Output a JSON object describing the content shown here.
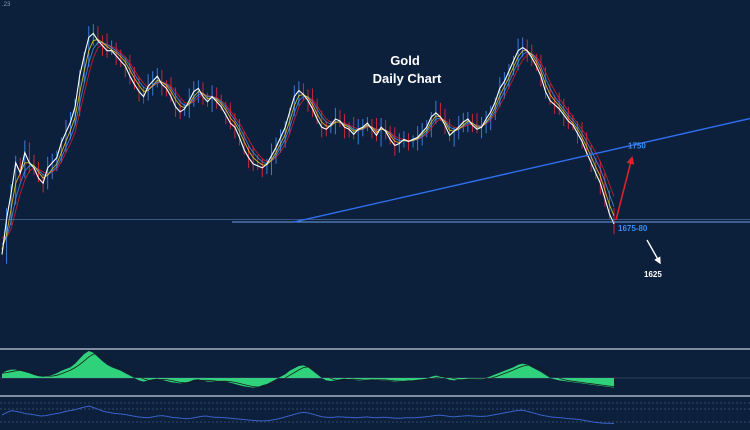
{
  "corner_label": ".23",
  "chart_data": {
    "type": "line",
    "title": "Gold",
    "subtitle": "Daily Chart",
    "xlabel": "",
    "ylabel": "",
    "grid": false,
    "annotations": [
      {
        "text": "1750",
        "value": 1750,
        "direction": "up",
        "color": "#e0202a"
      },
      {
        "text": "1675-80",
        "value": 1677,
        "direction": "level",
        "color": "#3a8ef0"
      },
      {
        "text": "1625",
        "value": 1625,
        "direction": "down",
        "color": "#ffffff"
      }
    ],
    "support_level": {
      "value": 1677
    },
    "trendline": {
      "from": {
        "bar": 64,
        "value": 1677
      },
      "to": {
        "bar": 180,
        "value": 1795
      }
    },
    "series": [
      {
        "color": "#ffffff",
        "values": [
          1645,
          1680,
          1705,
          1735,
          1725,
          1745,
          1735,
          1730,
          1720,
          1715,
          1730,
          1735,
          1740,
          1755,
          1765,
          1775,
          1790,
          1820,
          1840,
          1858,
          1862,
          1855,
          1850,
          1845,
          1845,
          1840,
          1835,
          1830,
          1820,
          1812,
          1805,
          1800,
          1810,
          1815,
          1820,
          1812,
          1808,
          1800,
          1790,
          1785,
          1788,
          1796,
          1805,
          1808,
          1800,
          1795,
          1800,
          1795,
          1790,
          1782,
          1774,
          1770,
          1760,
          1748,
          1740,
          1734,
          1732,
          1730,
          1734,
          1742,
          1750,
          1760,
          1770,
          1785,
          1800,
          1806,
          1802,
          1796,
          1788,
          1778,
          1770,
          1768,
          1772,
          1778,
          1776,
          1770,
          1768,
          1763,
          1768,
          1770,
          1774,
          1768,
          1762,
          1770,
          1766,
          1758,
          1752,
          1754,
          1758,
          1756,
          1758,
          1760,
          1765,
          1770,
          1780,
          1784,
          1780,
          1772,
          1762,
          1766,
          1770,
          1775,
          1778,
          1772,
          1768,
          1770,
          1778,
          1785,
          1795,
          1808,
          1815,
          1825,
          1835,
          1845,
          1848,
          1845,
          1838,
          1830,
          1820,
          1805,
          1796,
          1792,
          1788,
          1782,
          1776,
          1772,
          1764,
          1756,
          1745,
          1735,
          1725,
          1715,
          1700,
          1685,
          1675
        ]
      },
      {
        "color": "#f2d020",
        "values": [
          1650,
          1665,
          1690,
          1715,
          1725,
          1735,
          1735,
          1732,
          1726,
          1720,
          1723,
          1729,
          1734,
          1745,
          1756,
          1767,
          1780,
          1803,
          1825,
          1845,
          1855,
          1856,
          1853,
          1849,
          1846,
          1843,
          1839,
          1834,
          1826,
          1818,
          1811,
          1805,
          1806,
          1811,
          1816,
          1814,
          1811,
          1805,
          1797,
          1791,
          1789,
          1793,
          1800,
          1805,
          1803,
          1798,
          1799,
          1797,
          1793,
          1787,
          1779,
          1774,
          1766,
          1756,
          1747,
          1740,
          1736,
          1733,
          1733,
          1738,
          1745,
          1754,
          1763,
          1776,
          1791,
          1801,
          1802,
          1799,
          1792,
          1783,
          1775,
          1771,
          1771,
          1775,
          1775,
          1772,
          1770,
          1766,
          1767,
          1769,
          1772,
          1770,
          1765,
          1768,
          1767,
          1762,
          1756,
          1755,
          1757,
          1756,
          1757,
          1759,
          1763,
          1767,
          1775,
          1781,
          1780,
          1775,
          1767,
          1766,
          1768,
          1772,
          1776,
          1774,
          1770,
          1770,
          1775,
          1781,
          1790,
          1801,
          1810,
          1819,
          1829,
          1839,
          1845,
          1845,
          1841,
          1834,
          1825,
          1812,
          1802,
          1796,
          1791,
          1785,
          1779,
          1774,
          1768,
          1760,
          1751,
          1741,
          1731,
          1722,
          1708,
          1694,
          1683
        ]
      },
      {
        "color": "#4f8fe8",
        "values": [
          1655,
          1662,
          1678,
          1700,
          1715,
          1727,
          1732,
          1732,
          1728,
          1723,
          1723,
          1727,
          1731,
          1740,
          1750,
          1760,
          1772,
          1793,
          1813,
          1833,
          1847,
          1853,
          1853,
          1851,
          1848,
          1845,
          1841,
          1837,
          1830,
          1822,
          1815,
          1809,
          1807,
          1810,
          1814,
          1814,
          1812,
          1808,
          1801,
          1795,
          1791,
          1792,
          1797,
          1802,
          1803,
          1800,
          1800,
          1798,
          1795,
          1790,
          1783,
          1777,
          1770,
          1761,
          1752,
          1745,
          1740,
          1736,
          1734,
          1737,
          1742,
          1750,
          1758,
          1770,
          1784,
          1796,
          1800,
          1800,
          1795,
          1788,
          1780,
          1775,
          1773,
          1775,
          1775,
          1773,
          1771,
          1768,
          1767,
          1768,
          1771,
          1770,
          1767,
          1768,
          1767,
          1764,
          1759,
          1757,
          1757,
          1756,
          1757,
          1758,
          1761,
          1765,
          1772,
          1778,
          1779,
          1776,
          1770,
          1768,
          1768,
          1771,
          1774,
          1774,
          1771,
          1771,
          1774,
          1779,
          1786,
          1796,
          1805,
          1814,
          1824,
          1834,
          1841,
          1844,
          1842,
          1837,
          1829,
          1818,
          1808,
          1800,
          1794,
          1788,
          1782,
          1777,
          1771,
          1764,
          1756,
          1747,
          1738,
          1729,
          1717,
          1704,
          1692
        ]
      },
      {
        "color": "#e0202a",
        "values": [
          1662,
          1662,
          1670,
          1688,
          1705,
          1718,
          1727,
          1730,
          1729,
          1726,
          1724,
          1726,
          1729,
          1736,
          1745,
          1754,
          1765,
          1784,
          1803,
          1822,
          1838,
          1848,
          1851,
          1851,
          1849,
          1847,
          1843,
          1839,
          1833,
          1826,
          1819,
          1813,
          1809,
          1810,
          1813,
          1814,
          1813,
          1810,
          1805,
          1799,
          1794,
          1793,
          1795,
          1799,
          1802,
          1801,
          1800,
          1799,
          1796,
          1792,
          1786,
          1780,
          1774,
          1766,
          1758,
          1750,
          1744,
          1739,
          1736,
          1737,
          1740,
          1746,
          1753,
          1764,
          1777,
          1790,
          1797,
          1799,
          1797,
          1791,
          1784,
          1778,
          1775,
          1775,
          1775,
          1774,
          1772,
          1770,
          1768,
          1768,
          1770,
          1770,
          1768,
          1768,
          1767,
          1765,
          1761,
          1759,
          1758,
          1757,
          1757,
          1758,
          1760,
          1763,
          1769,
          1775,
          1778,
          1777,
          1773,
          1770,
          1769,
          1770,
          1772,
          1773,
          1772,
          1771,
          1773,
          1777,
          1783,
          1791,
          1800,
          1809,
          1818,
          1828,
          1836,
          1841,
          1842,
          1839,
          1833,
          1824,
          1814,
          1806,
          1798,
          1792,
          1786,
          1780,
          1774,
          1768,
          1761,
          1753,
          1745,
          1736,
          1726,
          1714,
          1702
        ]
      }
    ],
    "macd": {
      "type": "area",
      "fill": "#2fd17a",
      "values": [
        8,
        12,
        14,
        14,
        12,
        10,
        8,
        5,
        3,
        2,
        3,
        5,
        8,
        12,
        15,
        18,
        24,
        32,
        40,
        45,
        42,
        35,
        28,
        22,
        18,
        15,
        12,
        8,
        4,
        0,
        -4,
        -6,
        -4,
        -2,
        -1,
        -3,
        -5,
        -7,
        -8,
        -9,
        -8,
        -6,
        -3,
        -2,
        -4,
        -6,
        -6,
        -5,
        -5,
        -6,
        -8,
        -10,
        -12,
        -14,
        -15,
        -16,
        -15,
        -12,
        -10,
        -6,
        -2,
        2,
        6,
        12,
        16,
        20,
        21,
        18,
        12,
        6,
        0,
        -4,
        -5,
        -4,
        -2,
        -1,
        -2,
        -3,
        -4,
        -4,
        -3,
        -2,
        -3,
        -4,
        -4,
        -5,
        -6,
        -6,
        -5,
        -4,
        -4,
        -3,
        -2,
        -1,
        2,
        4,
        3,
        0,
        -3,
        -4,
        -3,
        -2,
        -1,
        -1,
        -2,
        -2,
        0,
        3,
        6,
        9,
        12,
        15,
        18,
        22,
        24,
        22,
        18,
        14,
        10,
        5,
        0,
        -2,
        -4,
        -5,
        -6,
        -7,
        -8,
        -9,
        -10,
        -11,
        -12,
        -13,
        -14,
        -15,
        -16
      ]
    },
    "rsi": {
      "type": "line",
      "color": "#3a63c8",
      "values": [
        52,
        58,
        62,
        60,
        58,
        55,
        54,
        52,
        50,
        51,
        53,
        55,
        57,
        60,
        62,
        64,
        67,
        70,
        72,
        68,
        64,
        60,
        58,
        56,
        55,
        54,
        52,
        50,
        48,
        47,
        46,
        48,
        50,
        51,
        49,
        47,
        46,
        45,
        44,
        45,
        47,
        49,
        50,
        48,
        47,
        47,
        46,
        45,
        44,
        43,
        42,
        41,
        40,
        39,
        39,
        40,
        42,
        44,
        47,
        50,
        53,
        56,
        58,
        57,
        54,
        51,
        48,
        47,
        47,
        48,
        48,
        47,
        47,
        46,
        47,
        48,
        47,
        46,
        47,
        47,
        46,
        45,
        45,
        46,
        46,
        46,
        47,
        48,
        49,
        51,
        52,
        51,
        49,
        48,
        49,
        50,
        51,
        50,
        49,
        49,
        50,
        52,
        54,
        56,
        58,
        60,
        62,
        63,
        61,
        58,
        55,
        52,
        50,
        48,
        47,
        46,
        45,
        44,
        43,
        42,
        40,
        38,
        36,
        35,
        34,
        34,
        33
      ]
    }
  }
}
